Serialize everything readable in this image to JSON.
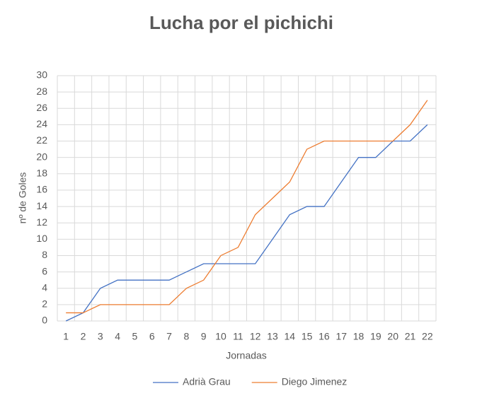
{
  "chart_data": {
    "type": "line",
    "title": "Lucha por el pichichi",
    "x_label": "Jornadas",
    "y_label": "nº de Goles",
    "categories": [
      1,
      2,
      3,
      4,
      5,
      6,
      7,
      8,
      9,
      10,
      11,
      12,
      13,
      14,
      15,
      16,
      17,
      18,
      19,
      20,
      21,
      22
    ],
    "series": [
      {
        "name": "Adrià Grau",
        "color": "#4472c4",
        "values": [
          0,
          1,
          4,
          5,
          5,
          5,
          5,
          6,
          7,
          7,
          7,
          7,
          10,
          13,
          14,
          14,
          17,
          20,
          20,
          22,
          22,
          24
        ]
      },
      {
        "name": "Diego Jimenez",
        "color": "#ed7d31",
        "values": [
          1,
          1,
          2,
          2,
          2,
          2,
          2,
          4,
          5,
          8,
          9,
          13,
          15,
          17,
          21,
          22,
          22,
          22,
          22,
          22,
          24,
          27
        ]
      }
    ],
    "ylim": [
      0,
      30
    ],
    "yticks": [
      0,
      2,
      4,
      6,
      8,
      10,
      12,
      14,
      16,
      18,
      20,
      22,
      24,
      26,
      28,
      30
    ],
    "grid": true,
    "legend": "bottom"
  }
}
